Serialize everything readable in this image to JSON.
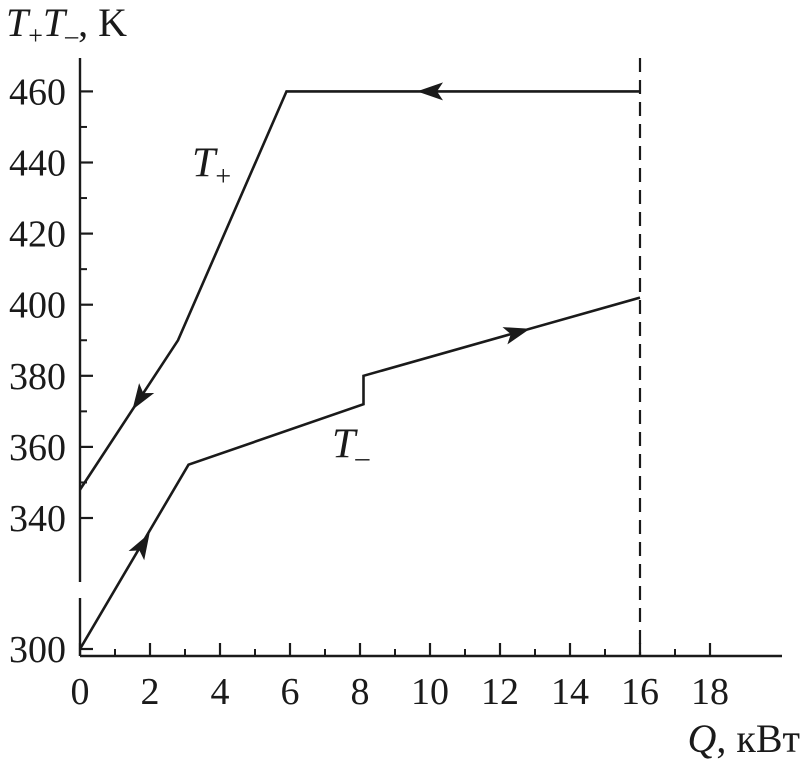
{
  "chart_data": {
    "type": "line",
    "ylabel": {
      "a": "T",
      "a_sub": "+",
      "b": "T",
      "b_sub": "–",
      "unit": ", K"
    },
    "xlabel": {
      "var": "Q",
      "unit": ", кВт"
    },
    "xlim": [
      0,
      18
    ],
    "x_ticks": [
      0,
      2,
      4,
      6,
      8,
      10,
      12,
      14,
      16,
      18
    ],
    "x_tick_labels": [
      "0",
      "2",
      "4",
      "6",
      "8",
      "10",
      "12",
      "14",
      "16",
      "18"
    ],
    "y_ticks": [
      300,
      340,
      360,
      380,
      400,
      420,
      440,
      460
    ],
    "y_tick_labels": [
      "300",
      "340",
      "360",
      "380",
      "400",
      "420",
      "440",
      "460"
    ],
    "y_axis_break": true,
    "vline_x": 16,
    "grid": false,
    "series": [
      {
        "name": "T",
        "name_sub": "+",
        "points": [
          [
            0,
            348
          ],
          [
            2.8,
            390
          ],
          [
            5.9,
            460
          ],
          [
            16,
            460
          ]
        ],
        "arrows": [
          {
            "x": 1.7,
            "direction": "toward-origin"
          },
          {
            "x": 10.0,
            "direction": "toward-origin"
          }
        ],
        "label_at": [
          3.2,
          436
        ]
      },
      {
        "name": "T",
        "name_sub": "–",
        "points": [
          [
            0,
            300
          ],
          [
            3.1,
            355
          ],
          [
            8.1,
            372
          ],
          [
            8.1,
            380
          ],
          [
            16,
            402
          ]
        ],
        "arrows": [
          {
            "x": 1.8,
            "direction": "away-from-origin"
          },
          {
            "x": 12.5,
            "direction": "away-from-origin"
          }
        ],
        "label_at": [
          7.2,
          357
        ]
      }
    ]
  }
}
